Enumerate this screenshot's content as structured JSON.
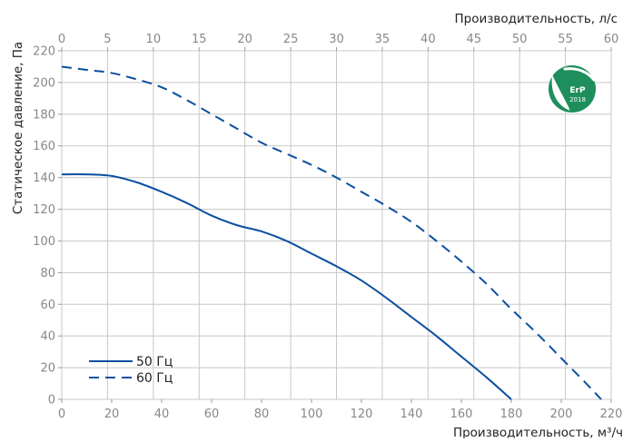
{
  "chart_data": {
    "type": "line",
    "xlabel_bottom": "Производительность, м³/ч",
    "xlabel_top": "Производительность, л/с",
    "ylabel": "Статическое давление, Па",
    "x_bottom_range": [
      0,
      220
    ],
    "x_bottom_ticks": [
      0,
      20,
      40,
      60,
      80,
      100,
      120,
      140,
      160,
      180,
      200,
      220
    ],
    "x_top_range": [
      0,
      60
    ],
    "x_top_ticks": [
      0,
      5,
      10,
      15,
      20,
      25,
      30,
      35,
      40,
      45,
      50,
      55,
      60
    ],
    "y_range": [
      0,
      220
    ],
    "y_ticks": [
      0,
      20,
      40,
      60,
      80,
      100,
      120,
      140,
      160,
      180,
      200,
      220
    ],
    "grid": true,
    "legend_position": "bottom-left",
    "line_color": "#0b4fa0",
    "series": [
      {
        "name": "50 Гц",
        "style": "solid",
        "x": [
          0,
          10,
          20,
          30,
          40,
          50,
          60,
          70,
          80,
          90,
          100,
          110,
          120,
          130,
          140,
          150,
          160,
          170,
          180
        ],
        "y": [
          142,
          142,
          141,
          137,
          131,
          124,
          116,
          110,
          106,
          100,
          92,
          84,
          75,
          64,
          52,
          40,
          27,
          14,
          0
        ]
      },
      {
        "name": "60 Гц",
        "style": "dashed",
        "x": [
          0,
          10,
          20,
          30,
          40,
          50,
          60,
          70,
          80,
          90,
          100,
          110,
          120,
          130,
          140,
          150,
          160,
          170,
          180,
          190,
          200,
          210,
          216
        ],
        "y": [
          210,
          208,
          206,
          202,
          197,
          189,
          180,
          171,
          162,
          155,
          148,
          140,
          131,
          122,
          112,
          100,
          87,
          73,
          57,
          42,
          26,
          10,
          0
        ]
      }
    ]
  },
  "logo": {
    "text": "ErP",
    "year": "2018",
    "color": "#1e8f5c"
  }
}
